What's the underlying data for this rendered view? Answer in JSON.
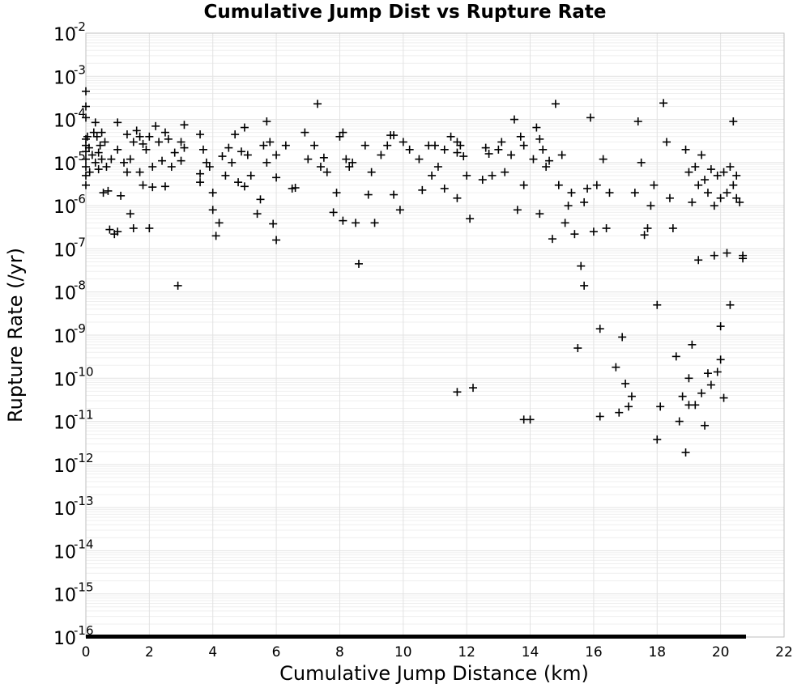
{
  "chart_data": {
    "type": "scatter",
    "title": "Cumulative Jump Dist vs Rupture Rate",
    "xlabel": "Cumulative Jump Distance (km)",
    "ylabel": "Rupture Rate (/yr)",
    "xlim": [
      0,
      22
    ],
    "ylim": [
      1e-16,
      0.01
    ],
    "yscale": "log",
    "grid": true,
    "marker": "+",
    "marker_color": "#000000",
    "xticks": [
      0,
      2,
      4,
      6,
      8,
      10,
      12,
      14,
      16,
      18,
      20,
      22
    ],
    "yticks": [
      {
        "base": "10",
        "exp": "-2",
        "value": 0.01
      },
      {
        "base": "10",
        "exp": "-3",
        "value": 0.001
      },
      {
        "base": "10",
        "exp": "-4",
        "value": 0.0001
      },
      {
        "base": "10",
        "exp": "-5",
        "value": 1e-05
      },
      {
        "base": "10",
        "exp": "-6",
        "value": 1e-06
      },
      {
        "base": "10",
        "exp": "-7",
        "value": 1e-07
      },
      {
        "base": "10",
        "exp": "-8",
        "value": 1e-08
      },
      {
        "base": "10",
        "exp": "-9",
        "value": 1e-09
      },
      {
        "base": "10",
        "exp": "-10",
        "value": 1e-10
      },
      {
        "base": "10",
        "exp": "-11",
        "value": 1e-11
      },
      {
        "base": "10",
        "exp": "-12",
        "value": 1e-12
      },
      {
        "base": "10",
        "exp": "-13",
        "value": 1e-13
      },
      {
        "base": "10",
        "exp": "-14",
        "value": 1e-14
      },
      {
        "base": "10",
        "exp": "-15",
        "value": 1e-15
      },
      {
        "base": "10",
        "exp": "-16",
        "value": 1e-16
      }
    ],
    "floor_band": {
      "from_x": 0,
      "to_x": 20.8,
      "y": 1e-16
    },
    "points": [
      [
        0.0,
        0.00045
      ],
      [
        0.0,
        0.0002
      ],
      [
        0.0,
        0.00011
      ],
      [
        0.0,
        3.5e-05
      ],
      [
        0.0,
        2.5e-05
      ],
      [
        0.0,
        1.8e-05
      ],
      [
        0.0,
        1.2e-05
      ],
      [
        0.0,
        8e-06
      ],
      [
        0.0,
        5e-06
      ],
      [
        0.0,
        3e-06
      ],
      [
        0.05,
        4e-05
      ],
      [
        0.1,
        2.2e-05
      ],
      [
        0.12,
        6e-06
      ],
      [
        0.2,
        1.5e-05
      ],
      [
        0.25,
        5e-05
      ],
      [
        0.3,
        8.5e-05
      ],
      [
        0.3,
        1e-05
      ],
      [
        0.35,
        4e-05
      ],
      [
        0.4,
        1.7e-05
      ],
      [
        0.4,
        7e-06
      ],
      [
        0.45,
        2.5e-05
      ],
      [
        0.5,
        5e-05
      ],
      [
        0.5,
        1.2e-05
      ],
      [
        0.55,
        2e-06
      ],
      [
        0.6,
        3e-05
      ],
      [
        0.65,
        8e-06
      ],
      [
        0.7,
        2.2e-06
      ],
      [
        0.75,
        2.8e-07
      ],
      [
        0.8,
        1.2e-05
      ],
      [
        0.9,
        2.2e-07
      ],
      [
        1.0,
        8.5e-05
      ],
      [
        1.0,
        2e-05
      ],
      [
        1.0,
        2.5e-07
      ],
      [
        1.1,
        1.7e-06
      ],
      [
        1.2,
        1e-05
      ],
      [
        1.3,
        4.5e-05
      ],
      [
        1.3,
        6e-06
      ],
      [
        1.4,
        1.2e-05
      ],
      [
        1.4,
        6.5e-07
      ],
      [
        1.5,
        3e-07
      ],
      [
        1.5,
        3e-05
      ],
      [
        1.6,
        5.5e-05
      ],
      [
        1.7,
        4e-05
      ],
      [
        1.7,
        6e-06
      ],
      [
        1.8,
        2.7e-05
      ],
      [
        1.8,
        3e-06
      ],
      [
        1.9,
        2e-05
      ],
      [
        2.0,
        4e-05
      ],
      [
        2.0,
        3e-07
      ],
      [
        2.1,
        2.7e-06
      ],
      [
        2.1,
        8e-06
      ],
      [
        2.2,
        7e-05
      ],
      [
        2.3,
        3e-05
      ],
      [
        2.4,
        1.1e-05
      ],
      [
        2.5,
        5e-05
      ],
      [
        2.5,
        2.8e-06
      ],
      [
        2.6,
        3.5e-05
      ],
      [
        2.7,
        8e-06
      ],
      [
        2.8,
        1.7e-05
      ],
      [
        2.9,
        1.4e-08
      ],
      [
        3.0,
        3e-05
      ],
      [
        3.1,
        7.5e-05
      ],
      [
        3.1,
        2.2e-05
      ],
      [
        3.0,
        1.1e-05
      ],
      [
        3.6,
        4.5e-05
      ],
      [
        3.6,
        5.5e-06
      ],
      [
        3.6,
        3.5e-06
      ],
      [
        3.7,
        2e-05
      ],
      [
        3.8,
        1e-05
      ],
      [
        3.9,
        8e-06
      ],
      [
        4.0,
        8e-07
      ],
      [
        4.0,
        2e-06
      ],
      [
        4.1,
        2e-07
      ],
      [
        4.2,
        4e-07
      ],
      [
        4.3,
        1.4e-05
      ],
      [
        4.4,
        5e-06
      ],
      [
        4.5,
        2.2e-05
      ],
      [
        4.6,
        1e-05
      ],
      [
        4.7,
        4.5e-05
      ],
      [
        4.8,
        3.5e-06
      ],
      [
        4.9,
        1.8e-05
      ],
      [
        5.0,
        6.5e-05
      ],
      [
        5.0,
        2.8e-06
      ],
      [
        5.1,
        1.5e-05
      ],
      [
        5.2,
        5e-06
      ],
      [
        5.4,
        6.5e-07
      ],
      [
        5.5,
        1.4e-06
      ],
      [
        5.6,
        2.5e-05
      ],
      [
        5.7,
        9e-05
      ],
      [
        5.7,
        1e-05
      ],
      [
        5.8,
        3e-05
      ],
      [
        5.9,
        3.8e-07
      ],
      [
        6.0,
        1.5e-05
      ],
      [
        6.0,
        4.5e-06
      ],
      [
        6.0,
        1.6e-07
      ],
      [
        6.3,
        2.5e-05
      ],
      [
        6.5,
        2.5e-06
      ],
      [
        6.6,
        2.6e-06
      ],
      [
        6.9,
        5e-05
      ],
      [
        7.0,
        1.2e-05
      ],
      [
        7.2,
        2.5e-05
      ],
      [
        7.3,
        0.00023
      ],
      [
        7.4,
        8e-06
      ],
      [
        7.5,
        1.3e-05
      ],
      [
        7.6,
        6e-06
      ],
      [
        7.8,
        7e-07
      ],
      [
        7.9,
        2e-06
      ],
      [
        8.0,
        4e-05
      ],
      [
        8.1,
        5e-05
      ],
      [
        8.1,
        4.5e-07
      ],
      [
        8.2,
        1.2e-05
      ],
      [
        8.3,
        8e-06
      ],
      [
        8.4,
        1e-05
      ],
      [
        8.5,
        4e-07
      ],
      [
        8.6,
        4.5e-08
      ],
      [
        8.8,
        2.5e-05
      ],
      [
        8.9,
        1.8e-06
      ],
      [
        9.0,
        6e-06
      ],
      [
        9.1,
        4e-07
      ],
      [
        9.3,
        1.5e-05
      ],
      [
        9.5,
        2.5e-05
      ],
      [
        9.6,
        4.3e-05
      ],
      [
        9.7,
        4.3e-05
      ],
      [
        9.7,
        1.8e-06
      ],
      [
        9.9,
        8e-07
      ],
      [
        10.0,
        3e-05
      ],
      [
        10.2,
        2e-05
      ],
      [
        10.5,
        1.2e-05
      ],
      [
        10.6,
        2.3e-06
      ],
      [
        10.8,
        2.5e-05
      ],
      [
        10.9,
        5e-06
      ],
      [
        11.0,
        2.5e-05
      ],
      [
        11.1,
        8e-06
      ],
      [
        11.3,
        2e-05
      ],
      [
        11.3,
        2.5e-06
      ],
      [
        11.5,
        4e-05
      ],
      [
        11.7,
        3e-05
      ],
      [
        11.7,
        1.7e-05
      ],
      [
        11.7,
        1.5e-06
      ],
      [
        11.7,
        4.8e-11
      ],
      [
        11.8,
        2.5e-05
      ],
      [
        11.9,
        1.4e-05
      ],
      [
        12.0,
        5e-06
      ],
      [
        12.1,
        5e-07
      ],
      [
        12.2,
        6e-11
      ],
      [
        12.5,
        4e-06
      ],
      [
        12.6,
        2.2e-05
      ],
      [
        12.7,
        1.6e-05
      ],
      [
        12.8,
        5e-06
      ],
      [
        13.0,
        2e-05
      ],
      [
        13.1,
        3e-05
      ],
      [
        13.2,
        6e-06
      ],
      [
        13.4,
        1.5e-05
      ],
      [
        13.5,
        0.0001
      ],
      [
        13.6,
        8e-07
      ],
      [
        13.7,
        4e-05
      ],
      [
        13.8,
        2.5e-05
      ],
      [
        13.8,
        3e-06
      ],
      [
        13.8,
        1.1e-11
      ],
      [
        14.0,
        1.1e-11
      ],
      [
        14.1,
        1.2e-05
      ],
      [
        14.2,
        6.5e-05
      ],
      [
        14.3,
        3.5e-05
      ],
      [
        14.3,
        6.5e-07
      ],
      [
        14.4,
        2e-05
      ],
      [
        14.5,
        8e-06
      ],
      [
        14.6,
        1.1e-05
      ],
      [
        14.7,
        1.7e-07
      ],
      [
        14.8,
        0.00023
      ],
      [
        14.9,
        3e-06
      ],
      [
        15.0,
        1.5e-05
      ],
      [
        15.1,
        4e-07
      ],
      [
        15.2,
        1e-06
      ],
      [
        15.3,
        2e-06
      ],
      [
        15.4,
        2.2e-07
      ],
      [
        15.5,
        5e-10
      ],
      [
        15.6,
        4e-08
      ],
      [
        15.7,
        1.4e-08
      ],
      [
        15.7,
        1.2e-06
      ],
      [
        15.8,
        2.5e-06
      ],
      [
        15.9,
        0.00011
      ],
      [
        16.0,
        2.5e-07
      ],
      [
        16.1,
        3e-06
      ],
      [
        16.2,
        1.4e-09
      ],
      [
        16.2,
        1.3e-11
      ],
      [
        16.3,
        1.2e-05
      ],
      [
        16.4,
        3e-07
      ],
      [
        16.5,
        2e-06
      ],
      [
        16.7,
        1.8e-10
      ],
      [
        16.8,
        1.6e-11
      ],
      [
        16.9,
        9e-10
      ],
      [
        17.0,
        7.5e-11
      ],
      [
        17.1,
        2.2e-11
      ],
      [
        17.2,
        3.8e-11
      ],
      [
        17.3,
        2e-06
      ],
      [
        17.4,
        9e-05
      ],
      [
        17.5,
        1e-05
      ],
      [
        17.6,
        2.1e-07
      ],
      [
        17.7,
        3e-07
      ],
      [
        17.8,
        1e-06
      ],
      [
        17.9,
        3e-06
      ],
      [
        18.0,
        5e-09
      ],
      [
        18.0,
        3.8e-12
      ],
      [
        18.1,
        2.2e-11
      ],
      [
        18.2,
        0.00024
      ],
      [
        18.3,
        3e-05
      ],
      [
        18.4,
        1.5e-06
      ],
      [
        18.5,
        3e-07
      ],
      [
        18.6,
        3.2e-10
      ],
      [
        18.7,
        1e-11
      ],
      [
        18.8,
        3.8e-11
      ],
      [
        18.9,
        1.9e-12
      ],
      [
        19.0,
        1e-10
      ],
      [
        19.0,
        2.4e-11
      ],
      [
        19.1,
        6e-10
      ],
      [
        19.2,
        2.4e-11
      ],
      [
        19.3,
        5.5e-08
      ],
      [
        19.4,
        4.5e-11
      ],
      [
        19.5,
        8e-12
      ],
      [
        19.6,
        1.3e-10
      ],
      [
        19.7,
        7e-11
      ],
      [
        19.8,
        7e-08
      ],
      [
        19.9,
        1.4e-10
      ],
      [
        20.0,
        1.6e-09
      ],
      [
        20.0,
        2.7e-10
      ],
      [
        20.1,
        3.5e-11
      ],
      [
        20.2,
        8e-08
      ],
      [
        20.3,
        5e-09
      ],
      [
        20.4,
        9e-05
      ],
      [
        20.5,
        1.5e-06
      ],
      [
        20.7,
        7e-08
      ],
      [
        20.7,
        6e-08
      ],
      [
        19.9,
        5e-06
      ],
      [
        20.0,
        1.5e-06
      ],
      [
        20.1,
        6e-06
      ],
      [
        20.2,
        2e-06
      ],
      [
        20.3,
        8e-06
      ],
      [
        20.4,
        3e-06
      ],
      [
        20.5,
        5e-06
      ],
      [
        20.6,
        1.2e-06
      ],
      [
        19.5,
        4e-06
      ],
      [
        19.6,
        2e-06
      ],
      [
        19.7,
        7e-06
      ],
      [
        19.8,
        1e-06
      ],
      [
        19.4,
        1.5e-05
      ],
      [
        19.3,
        3e-06
      ],
      [
        19.2,
        8e-06
      ],
      [
        19.1,
        1.2e-06
      ],
      [
        19.0,
        6e-06
      ],
      [
        18.9,
        2e-05
      ]
    ]
  }
}
